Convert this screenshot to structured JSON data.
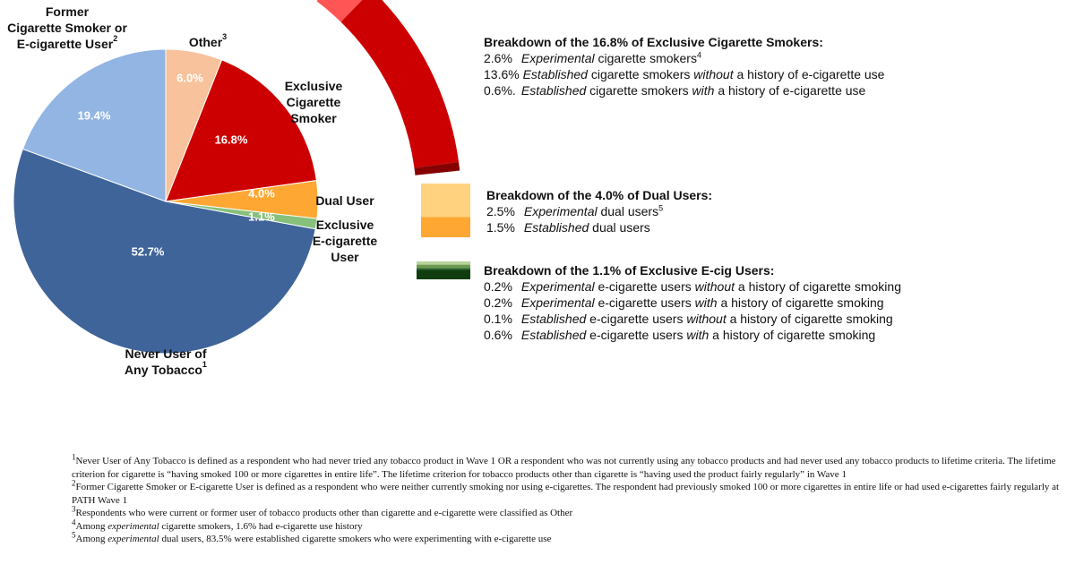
{
  "chart_data": {
    "type": "pie",
    "categories": [
      [
        "Other"
      ],
      [
        "Exclusive",
        "Cigarette",
        "Smoker"
      ],
      [
        "Dual User"
      ],
      [
        "Exclusive",
        "E-cigarette",
        "User"
      ],
      [
        "Never User of",
        "Any Tobacco"
      ],
      [
        "Former",
        "Cigarette Smoker or",
        "E-cigarette User"
      ]
    ],
    "category_notes": [
      "3",
      null,
      null,
      null,
      "1",
      "2"
    ],
    "values": [
      6.0,
      16.8,
      4.0,
      1.1,
      52.7,
      19.4
    ],
    "value_labels": [
      "6.0%",
      "16.8%",
      "4.0%",
      "1.1%",
      "52.7%",
      "19.4%"
    ],
    "colors": [
      "#f7c29c",
      "#cc0000",
      "#ffa733",
      "#86c07a",
      "#3f6499",
      "#92b5e3"
    ],
    "breakdowns": [
      {
        "title": "Breakdown of the 16.8% of Exclusive Cigarette Smokers:",
        "items": [
          {
            "value": 2.6,
            "value_label": "2.6%",
            "text": [
              "Experimental",
              " cigarette smokers"
            ],
            "note": "4",
            "color": "#ff5555"
          },
          {
            "value": 13.6,
            "value_label": "13.6%",
            "text": [
              "Established",
              " cigarette smokers ",
              "without",
              " a history of e-cigarette use"
            ],
            "note": null,
            "color": "#cc0000"
          },
          {
            "value": 0.6,
            "value_label": "0.6%.",
            "text": [
              "Established",
              " cigarette smokers ",
              "with",
              " a history of e-cigarette use"
            ],
            "note": null,
            "color": "#850000"
          }
        ]
      },
      {
        "title": "Breakdown of the 4.0% of Dual Users:",
        "items": [
          {
            "value": 2.5,
            "value_label": "2.5%",
            "text": [
              "Experimental",
              " dual users"
            ],
            "note": "5",
            "color": "#ffd27f"
          },
          {
            "value": 1.5,
            "value_label": "1.5%",
            "text": [
              "Established",
              " dual users"
            ],
            "note": null,
            "color": "#ffa733"
          }
        ]
      },
      {
        "title": "Breakdown of the 1.1% of Exclusive E-cig Users:",
        "items": [
          {
            "value": 0.2,
            "value_label": "0.2%",
            "text": [
              "Experimental",
              " e-cigarette users ",
              "without",
              " a history of cigarette smoking"
            ],
            "note": null,
            "color": "#b5d39a"
          },
          {
            "value": 0.2,
            "value_label": "0.2%",
            "text": [
              "Experimental",
              " e-cigarette users ",
              "with",
              " a history of cigarette smoking"
            ],
            "note": null,
            "color": "#6f9a50"
          },
          {
            "value": 0.1,
            "value_label": "0.1%",
            "text": [
              "Established",
              " e-cigarette users ",
              "without",
              " a history of cigarette smoking"
            ],
            "note": null,
            "color": "#2f6b2f"
          },
          {
            "value": 0.6,
            "value_label": "0.6%",
            "text": [
              "Established",
              " e-cigarette users ",
              "with",
              " a history of cigarette smoking"
            ],
            "note": null,
            "color": "#0f3d10"
          }
        ]
      }
    ],
    "footnotes": [
      {
        "mark": "1",
        "text": [
          "Never User of Any Tobacco is defined as a respondent who had never tried any tobacco product in Wave 1 OR a respondent who was not currently using any tobacco products and had never used any tobacco products to lifetime criteria. The lifetime criterion for cigarette is “having smoked 100 or more cigarettes in entire life”. The lifetime criterion for tobacco products other than cigarette is “having used the product fairly regularly” in Wave 1"
        ]
      },
      {
        "mark": "2",
        "text": [
          "Former Cigarette Smoker or E-cigarette User is defined as a respondent who were neither currently smoking nor using e-cigarettes. The respondent had previously smoked 100 or more cigarettes in entire life or had used e-cigarettes fairly regularly at PATH Wave 1"
        ]
      },
      {
        "mark": "3",
        "text": [
          "Respondents who were current or former user of tobacco products other than cigarette and e-cigarette were classified as Other"
        ]
      },
      {
        "mark": "4",
        "text": [
          "Among ",
          "experimental",
          " cigarette smokers, 1.6% had e-cigarette use history"
        ]
      },
      {
        "mark": "5",
        "text": [
          "Among ",
          "experimental",
          " dual users, 83.5% were established cigarette smokers who were experimenting with e-cigarette use"
        ]
      }
    ]
  }
}
